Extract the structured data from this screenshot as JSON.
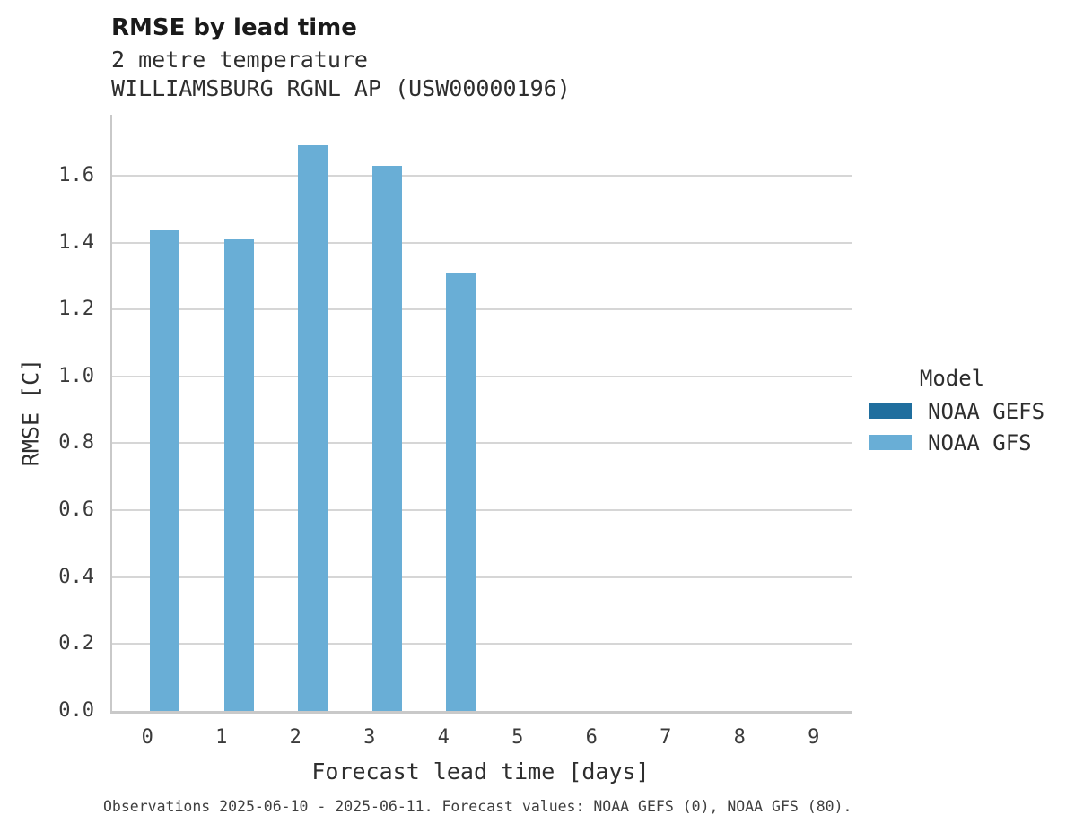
{
  "chart_data": {
    "type": "bar",
    "title": "RMSE by lead time",
    "subtitle_line1": "2 metre temperature",
    "subtitle_line2": "WILLIAMSBURG RGNL AP (USW00000196)",
    "xlabel": "Forecast lead time [days]",
    "ylabel": "RMSE [C]",
    "categories": [
      "0",
      "1",
      "2",
      "3",
      "4",
      "5",
      "6",
      "7",
      "8",
      "9"
    ],
    "series": [
      {
        "name": "NOAA GEFS",
        "color": "#1f6e9e",
        "values": [
          null,
          null,
          null,
          null,
          null,
          null,
          null,
          null,
          null,
          null
        ]
      },
      {
        "name": "NOAA GFS",
        "color": "#69aed6",
        "values": [
          1.44,
          1.41,
          1.69,
          1.63,
          1.31,
          null,
          null,
          null,
          null,
          null
        ]
      }
    ],
    "yticks": [
      "0.0",
      "0.2",
      "0.4",
      "0.6",
      "0.8",
      "1.0",
      "1.2",
      "1.4",
      "1.6"
    ],
    "ylim": [
      0,
      1.782
    ],
    "grid": "horizontal",
    "legend_title": "Model",
    "legend_position": "right",
    "caption": "Observations 2025-06-10 - 2025-06-11. Forecast values: NOAA GEFS (0), NOAA GFS (80).",
    "colors": {
      "bar_light": "#69aed6",
      "bar_dark": "#1f6e9e",
      "gridline": "#d6d6d6",
      "spine": "#c9c9c9",
      "text": "#2e2e2e"
    }
  }
}
